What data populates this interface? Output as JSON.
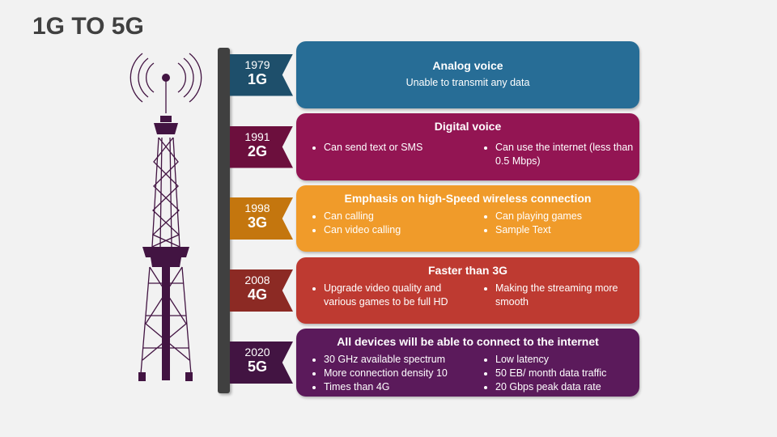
{
  "title": "1G TO 5G",
  "generations": [
    {
      "year": "1979",
      "gen": "1G",
      "heading": "Analog voice",
      "subtitle": "Unable to transmit any data",
      "left": [],
      "right": [],
      "box_color": "#276d96",
      "ribbon_color": "#1e4f6b"
    },
    {
      "year": "1991",
      "gen": "2G",
      "heading": "Digital voice",
      "left": [
        "Can send text or SMS"
      ],
      "right": [
        "Can use the internet (less than 0.5 Mbps)"
      ],
      "box_color": "#931553",
      "ribbon_color": "#6c0f3d"
    },
    {
      "year": "1998",
      "gen": "3G",
      "heading": "Emphasis on high-Speed wireless connection",
      "left": [
        "Can calling",
        "Can video calling"
      ],
      "right": [
        "Can playing games",
        "Sample Text"
      ],
      "box_color": "#f09b2a",
      "ribbon_color": "#c4760e"
    },
    {
      "year": "2008",
      "gen": "4G",
      "heading": "Faster than 3G",
      "left": [
        "Upgrade video quality and various games to be full HD"
      ],
      "right": [
        "Making the streaming more smooth"
      ],
      "box_color": "#be3a31",
      "ribbon_color": "#8c2a24"
    },
    {
      "year": "2020",
      "gen": "5G",
      "heading": "All devices will be able to connect to the internet",
      "left": [
        "30 GHz available spectrum",
        "More connection density 10",
        "Times than 4G"
      ],
      "right": [
        "Low latency",
        "50 EB/ month data traffic",
        "20 Gbps peak data rate"
      ],
      "box_color": "#5b1a5b",
      "ribbon_color": "#421442"
    }
  ],
  "tower_color": "#421442"
}
